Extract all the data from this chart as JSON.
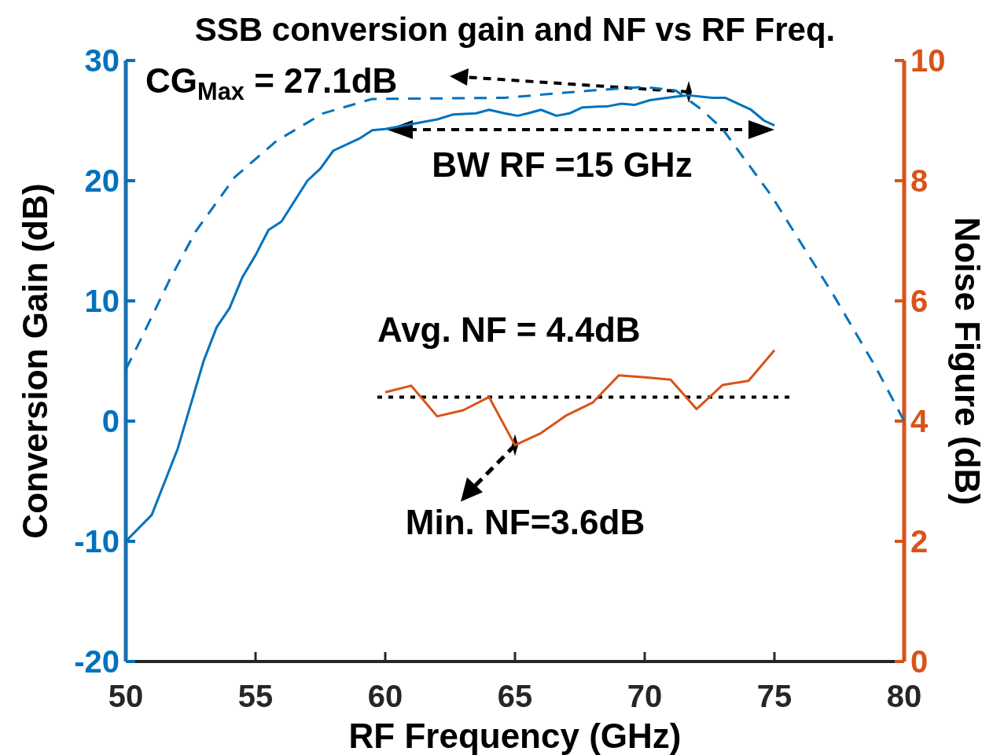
{
  "chart_data": {
    "type": "line",
    "title": "SSB conversion gain and NF vs RF Freq.",
    "xlabel": "RF Frequency (GHz)",
    "ylabel": "Conversion Gain (dB)",
    "y2label": "Noise Figure (dB)",
    "xlim": [
      50,
      80
    ],
    "xticks": [
      50,
      55,
      60,
      65,
      70,
      75,
      80
    ],
    "ylim": [
      -20,
      30
    ],
    "yticks": [
      -20,
      -10,
      0,
      10,
      20,
      30
    ],
    "y2lim": [
      0,
      10
    ],
    "y2ticks": [
      0,
      2,
      4,
      6,
      8,
      10
    ],
    "grid": false,
    "marker": "none",
    "series": [
      {
        "color": "#0072bd",
        "line_style": "solid",
        "x": [
          50,
          51,
          52,
          53,
          53.5,
          54,
          54.5,
          55,
          55.5,
          56,
          57,
          57.5,
          58,
          59,
          59.5,
          60,
          61.5,
          62,
          62.6,
          63.5,
          64,
          64.6,
          65.1,
          65.5,
          66,
          66.6,
          67.1,
          67.6,
          68.6,
          69.1,
          69.6,
          70.2,
          71.2,
          71.7,
          72.6,
          73.1,
          74.1,
          74.6,
          75
        ],
        "values": [
          -10,
          -7.8,
          -2.3,
          5,
          7.8,
          9.4,
          12,
          13.8,
          15.9,
          16.6,
          20,
          21,
          22.5,
          23.5,
          24.2,
          24.3,
          24.9,
          25.1,
          25.5,
          25.6,
          25.9,
          25.6,
          25.4,
          25.6,
          25.9,
          25.4,
          25.6,
          26.1,
          26.2,
          26.4,
          26.3,
          26.7,
          27,
          27.1,
          26.9,
          26.9,
          25.9,
          25,
          24.6
        ]
      },
      {
        "color": "#0072bd",
        "line_style": "dashed",
        "x": [
          50,
          50.6,
          51.7,
          52.7,
          54.2,
          55.8,
          57.6,
          59.5,
          64.6,
          67.9,
          70,
          71.2,
          72.2,
          73,
          74.9,
          77.3,
          78.9,
          80
        ],
        "values": [
          4.3,
          6.9,
          11.8,
          15.8,
          20.3,
          23.3,
          25.6,
          26.8,
          26.9,
          27.5,
          27.8,
          27.5,
          25.9,
          24.3,
          18.7,
          10.4,
          4.5,
          0
        ]
      },
      {
        "color": "#d95319",
        "line_style": "solid",
        "axis": "y2",
        "x": [
          60,
          61,
          62,
          63,
          64,
          65,
          66,
          67,
          68,
          69,
          70,
          71,
          72,
          73,
          74,
          75
        ],
        "values": [
          4.48,
          4.59,
          4.08,
          4.18,
          4.4,
          3.6,
          3.8,
          4.1,
          4.31,
          4.76,
          4.73,
          4.69,
          4.2,
          4.6,
          4.67,
          5.18
        ]
      }
    ],
    "ref_lines": [
      {
        "axis": "y2",
        "value": 4.4,
        "label": "Avg. NF = 4.4dB",
        "color": "#000000",
        "line_style": "dotted"
      }
    ],
    "annotations": [
      "CG$_{Max}$ = 27.1dB",
      "BW RF =15 GHz",
      {
        "text": "Min. NF=3.6dB",
        "x": 65,
        "y": -2
      }
    ]
  }
}
